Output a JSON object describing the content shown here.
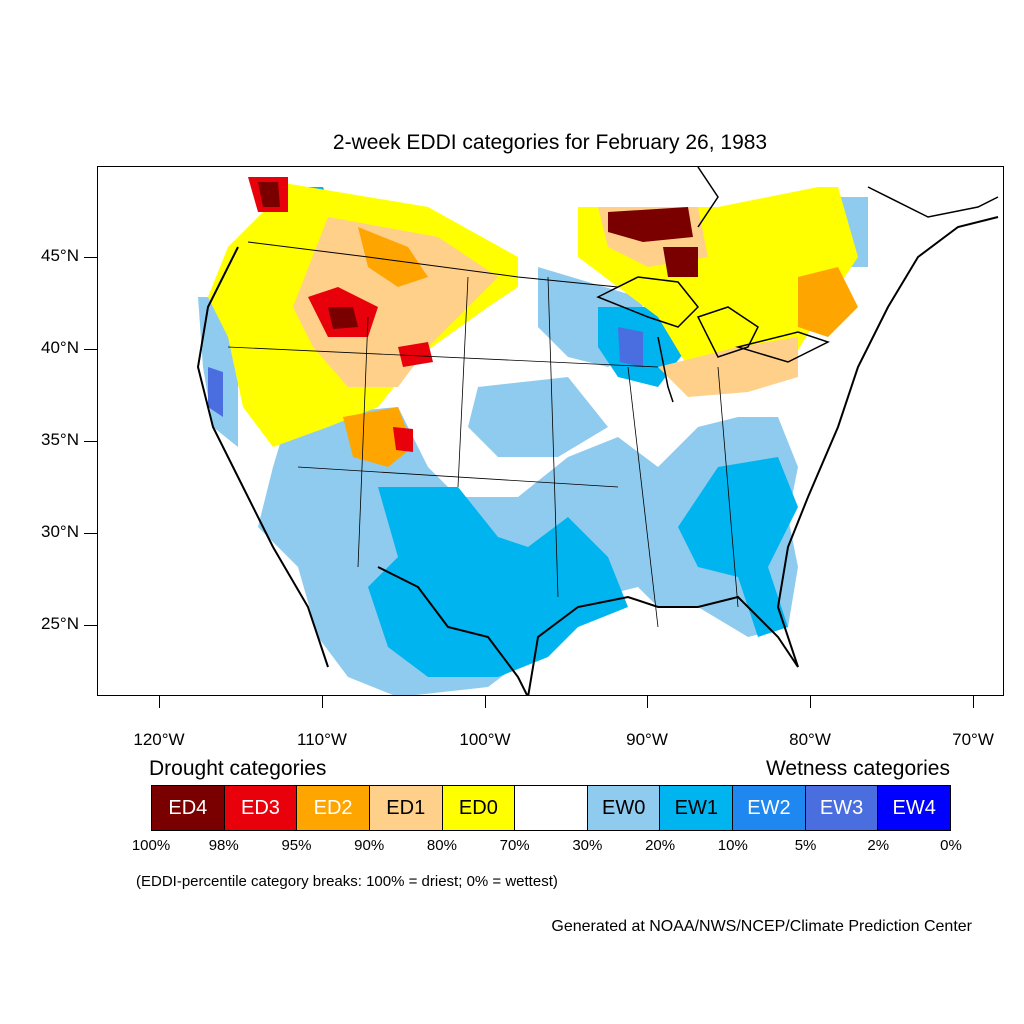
{
  "title": "2-week EDDI categories for February 26, 1983",
  "axes": {
    "latitude_labels": [
      "45°N",
      "40°N",
      "35°N",
      "30°N",
      "25°N"
    ],
    "longitude_labels": [
      "120°W",
      "110°W",
      "100°W",
      "90°W",
      "80°W",
      "70°W"
    ]
  },
  "legend": {
    "drought_heading": "Drought categories",
    "wetness_heading": "Wetness categories",
    "categories": [
      {
        "label": "ED4",
        "color": "#7a0000",
        "text_color": "#ffffff"
      },
      {
        "label": "ED3",
        "color": "#e8000b",
        "text_color": "#ffffff"
      },
      {
        "label": "ED2",
        "color": "#ffa500",
        "text_color": "#ffffff"
      },
      {
        "label": "ED1",
        "color": "#fed08a",
        "text_color": "#000000"
      },
      {
        "label": "ED0",
        "color": "#ffff00",
        "text_color": "#000000"
      },
      {
        "label": "",
        "color": "#ffffff",
        "text_color": "#000000"
      },
      {
        "label": "EW0",
        "color": "#8fcbee",
        "text_color": "#000000"
      },
      {
        "label": "EW1",
        "color": "#00b4f0",
        "text_color": "#000000"
      },
      {
        "label": "EW2",
        "color": "#1e88f0",
        "text_color": "#ffffff"
      },
      {
        "label": "EW3",
        "color": "#4a6ee0",
        "text_color": "#ffffff"
      },
      {
        "label": "EW4",
        "color": "#0000ff",
        "text_color": "#ffffff"
      }
    ],
    "percent_breaks": [
      "100%",
      "98%",
      "95%",
      "90%",
      "80%",
      "70%",
      "30%",
      "20%",
      "10%",
      "5%",
      "2%",
      "0%"
    ]
  },
  "note": "(EDDI-percentile category breaks: 100% = driest; 0% = wettest)",
  "credit": "Generated at NOAA/NWS/NCEP/Climate Prediction Center"
}
